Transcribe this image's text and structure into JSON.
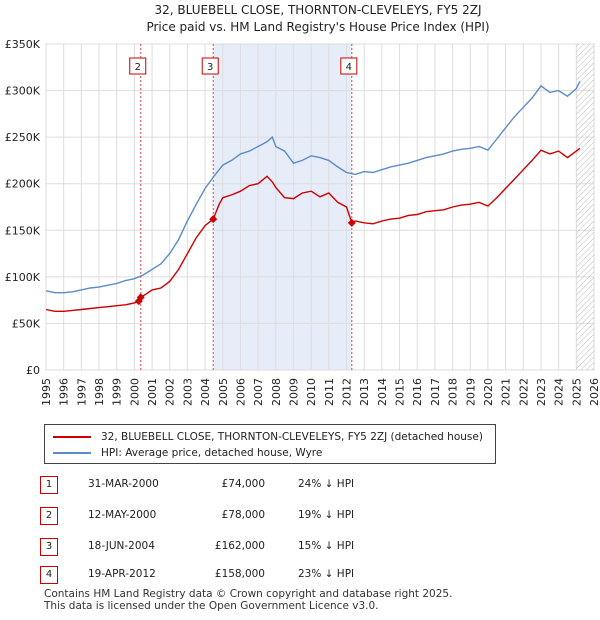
{
  "chart_data": {
    "type": "line",
    "title": "32, BLUEBELL CLOSE, THORNTON-CLEVELEYS, FY5 2ZJ",
    "subtitle": "Price paid vs. HM Land Registry's House Price Index (HPI)",
    "xlim": [
      1995,
      2026
    ],
    "ylim": [
      0,
      350000
    ],
    "yticks": [
      {
        "value": 0,
        "label": "£0"
      },
      {
        "value": 50000,
        "label": "£50K"
      },
      {
        "value": 100000,
        "label": "£100K"
      },
      {
        "value": 150000,
        "label": "£150K"
      },
      {
        "value": 200000,
        "label": "£200K"
      },
      {
        "value": 250000,
        "label": "£250K"
      },
      {
        "value": 300000,
        "label": "£300K"
      },
      {
        "value": 350000,
        "label": "£350K"
      }
    ],
    "xticks": [
      "1995",
      "1996",
      "1997",
      "1998",
      "1999",
      "2000",
      "2001",
      "2002",
      "2003",
      "2004",
      "2005",
      "2006",
      "2007",
      "2008",
      "2009",
      "2010",
      "2011",
      "2012",
      "2013",
      "2014",
      "2015",
      "2016",
      "2017",
      "2018",
      "2019",
      "2020",
      "2021",
      "2022",
      "2023",
      "2024",
      "2025",
      "2026"
    ],
    "series": [
      {
        "name": "32, BLUEBELL CLOSE, THORNTON-CLEVELEYS, FY5 2ZJ (detached house)",
        "color": "#cc0000",
        "x": [
          1995.0,
          1995.5,
          1996.0,
          1996.5,
          1997.0,
          1997.5,
          1998.0,
          1998.5,
          1999.0,
          1999.5,
          2000.0,
          2000.25,
          2000.36,
          2000.7,
          2001.0,
          2001.5,
          2002.0,
          2002.5,
          2003.0,
          2003.5,
          2004.0,
          2004.46,
          2004.8,
          2005.0,
          2005.5,
          2006.0,
          2006.5,
          2007.0,
          2007.5,
          2007.8,
          2008.0,
          2008.5,
          2009.0,
          2009.5,
          2010.0,
          2010.5,
          2011.0,
          2011.5,
          2012.0,
          2012.3,
          2012.5,
          2013.0,
          2013.5,
          2014.0,
          2014.5,
          2015.0,
          2015.5,
          2016.0,
          2016.5,
          2017.0,
          2017.5,
          2018.0,
          2018.5,
          2019.0,
          2019.5,
          2020.0,
          2020.5,
          2021.0,
          2021.5,
          2022.0,
          2022.5,
          2023.0,
          2023.5,
          2024.0,
          2024.5,
          2025.0,
          2025.2
        ],
        "values": [
          65000,
          63000,
          63000,
          64000,
          65000,
          66000,
          67000,
          68000,
          69000,
          70000,
          72000,
          74000,
          78000,
          82000,
          86000,
          88000,
          95000,
          108000,
          125000,
          142000,
          155000,
          162000,
          178000,
          185000,
          188000,
          192000,
          198000,
          200000,
          208000,
          202000,
          196000,
          185000,
          184000,
          190000,
          192000,
          186000,
          190000,
          180000,
          175000,
          158000,
          160000,
          158000,
          157000,
          160000,
          162000,
          163000,
          166000,
          167000,
          170000,
          171000,
          172000,
          175000,
          177000,
          178000,
          180000,
          176000,
          185000,
          195000,
          205000,
          215000,
          225000,
          236000,
          232000,
          235000,
          228000,
          235000,
          238000
        ]
      },
      {
        "name": "HPI: Average price, detached house, Wyre",
        "color": "#5b8cc8",
        "x": [
          1995.0,
          1995.5,
          1996.0,
          1996.5,
          1997.0,
          1997.5,
          1998.0,
          1998.5,
          1999.0,
          1999.5,
          2000.0,
          2000.5,
          2001.0,
          2001.5,
          2002.0,
          2002.5,
          2003.0,
          2003.5,
          2004.0,
          2004.5,
          2005.0,
          2005.5,
          2006.0,
          2006.5,
          2007.0,
          2007.5,
          2007.8,
          2008.0,
          2008.5,
          2009.0,
          2009.5,
          2010.0,
          2010.5,
          2011.0,
          2011.5,
          2012.0,
          2012.5,
          2013.0,
          2013.5,
          2014.0,
          2014.5,
          2015.0,
          2015.5,
          2016.0,
          2016.5,
          2017.0,
          2017.5,
          2018.0,
          2018.5,
          2019.0,
          2019.5,
          2020.0,
          2020.5,
          2021.0,
          2021.5,
          2022.0,
          2022.5,
          2023.0,
          2023.5,
          2024.0,
          2024.5,
          2025.0,
          2025.2
        ],
        "values": [
          85000,
          83000,
          83000,
          84000,
          86000,
          88000,
          89000,
          91000,
          93000,
          96000,
          98000,
          102000,
          108000,
          114000,
          125000,
          140000,
          160000,
          178000,
          195000,
          208000,
          220000,
          225000,
          232000,
          235000,
          240000,
          245000,
          250000,
          240000,
          235000,
          222000,
          225000,
          230000,
          228000,
          225000,
          218000,
          212000,
          210000,
          213000,
          212000,
          215000,
          218000,
          220000,
          222000,
          225000,
          228000,
          230000,
          232000,
          235000,
          237000,
          238000,
          240000,
          236000,
          248000,
          260000,
          272000,
          282000,
          292000,
          305000,
          298000,
          300000,
          294000,
          302000,
          310000
        ]
      }
    ],
    "vbands": [
      {
        "from": 2000.36,
        "to": 2000.36
      },
      {
        "from": 2004.46,
        "to": 2012.3
      }
    ],
    "hatch_from": 2025.0,
    "markers": [
      {
        "num": "2",
        "x": 2000.36,
        "y": 78000
      },
      {
        "num": "3",
        "x": 2004.46,
        "y": 162000
      },
      {
        "num": "4",
        "x": 2012.3,
        "y": 158000
      }
    ],
    "points": [
      {
        "x": 2000.25,
        "y": 74000
      },
      {
        "x": 2000.36,
        "y": 78000
      },
      {
        "x": 2004.46,
        "y": 162000
      },
      {
        "x": 2012.3,
        "y": 158000
      }
    ]
  },
  "legend": {
    "property": "32, BLUEBELL CLOSE, THORNTON-CLEVELEYS, FY5 2ZJ (detached house)",
    "hpi": "HPI: Average price, detached house, Wyre",
    "property_color": "#cc0000",
    "hpi_color": "#5b8cc8"
  },
  "transactions": [
    {
      "num": "1",
      "date": "31-MAR-2000",
      "price": "£74,000",
      "hpi": "24% ↓ HPI"
    },
    {
      "num": "2",
      "date": "12-MAY-2000",
      "price": "£78,000",
      "hpi": "19% ↓ HPI"
    },
    {
      "num": "3",
      "date": "18-JUN-2004",
      "price": "£162,000",
      "hpi": "15% ↓ HPI"
    },
    {
      "num": "4",
      "date": "19-APR-2012",
      "price": "£158,000",
      "hpi": "23% ↓ HPI"
    }
  ],
  "footer": {
    "line1": "Contains HM Land Registry data © Crown copyright and database right 2025.",
    "line2": "This data is licensed under the Open Government Licence v3.0."
  }
}
